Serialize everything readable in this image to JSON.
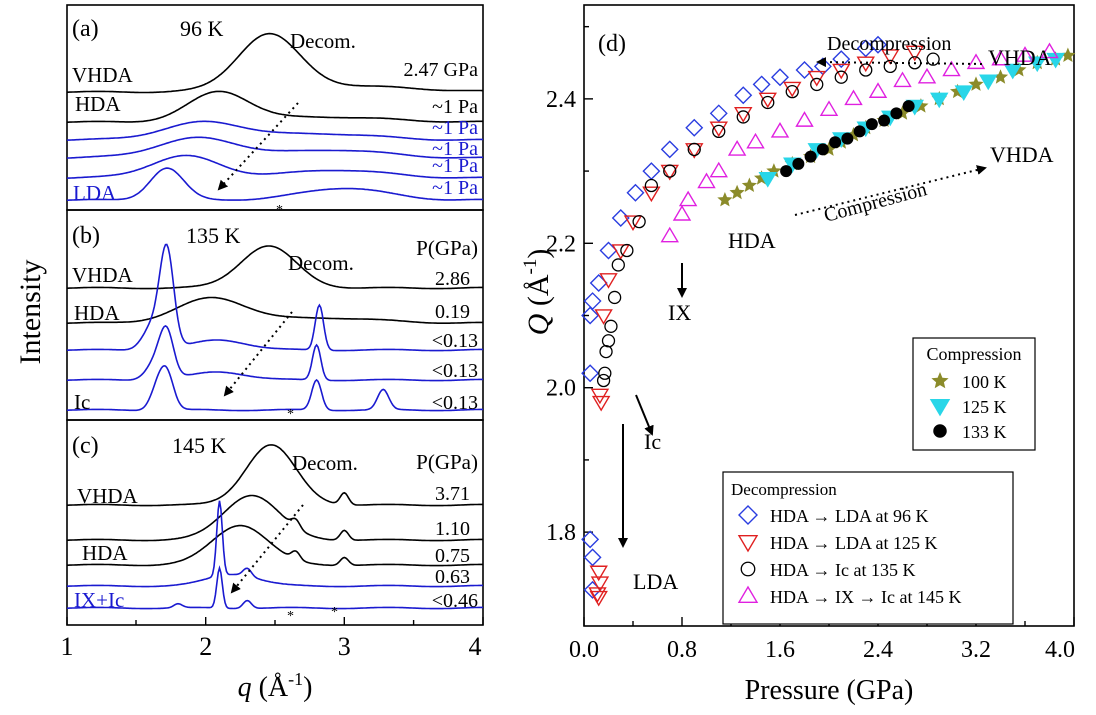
{
  "left": {
    "ylabel": "Intensity",
    "xlabel_main": "q",
    "xlabel_unit_open": " (Å",
    "xlabel_unit_exp": "-1",
    "xlabel_unit_close": ")",
    "xticks": [
      "1",
      "2",
      "3",
      "4"
    ],
    "panels": [
      {
        "label": "(a)",
        "temp": "96 K",
        "decom": "Decom.",
        "header": "",
        "curve_labels": [
          "VHDA",
          "HDA",
          "LDA"
        ],
        "pressures": [
          {
            "text": "2.47 GPa",
            "color": "black"
          },
          {
            "text": "~1 Pa",
            "color": "black"
          },
          {
            "text": "~1 Pa",
            "color": "blue"
          },
          {
            "text": "~1 Pa",
            "color": "blue"
          },
          {
            "text": "~1 Pa",
            "color": "blue"
          },
          {
            "text": "~1 Pa",
            "color": "blue"
          }
        ],
        "star": "*"
      },
      {
        "label": "(b)",
        "temp": "135 K",
        "decom": "Decom.",
        "header": "P(GPa)",
        "curve_labels": [
          "VHDA",
          "HDA",
          "Ic"
        ],
        "pressures": [
          {
            "text": "2.86",
            "color": "black"
          },
          {
            "text": "0.19",
            "color": "black"
          },
          {
            "text": "<0.13",
            "color": "black"
          },
          {
            "text": "<0.13",
            "color": "black"
          },
          {
            "text": "<0.13",
            "color": "black"
          }
        ],
        "star": "*"
      },
      {
        "label": "(c)",
        "temp": "145 K",
        "decom": "Decom.",
        "header": "P(GPa)",
        "curve_labels": [
          "VHDA",
          "HDA",
          "IX+Ic"
        ],
        "pressures": [
          {
            "text": "3.71",
            "color": "black"
          },
          {
            "text": "1.10",
            "color": "black"
          },
          {
            "text": "0.75",
            "color": "black"
          },
          {
            "text": "0.63",
            "color": "black"
          },
          {
            "text": "<0.46",
            "color": "black"
          }
        ],
        "star": "*"
      }
    ]
  },
  "chart_data": {
    "type": "scatter",
    "panel_label": "(d)",
    "xlabel": "Pressure (GPa)",
    "ylabel_main": "Q",
    "ylabel_unit_open": " (Å",
    "ylabel_unit_exp": "-1",
    "ylabel_unit_close": ")",
    "xlim": [
      0,
      4.0
    ],
    "ylim": [
      1.67,
      2.53
    ],
    "xticks": [
      0.0,
      0.8,
      1.6,
      2.4,
      3.2,
      4.0
    ],
    "xtick_labels": [
      "0.0",
      "0.8",
      "1.6",
      "2.4",
      "3.2",
      "4.0"
    ],
    "yticks": [
      1.8,
      2.0,
      2.2,
      2.4
    ],
    "ytick_labels": [
      "1.8",
      "2.0",
      "2.2",
      "2.4"
    ],
    "annotations": {
      "decompression": "Decompression",
      "vhda_top": "VHDA",
      "vhda_mid": "VHDA",
      "compression": "Compression",
      "hda": "HDA",
      "ix": "IX",
      "ic": "Ic",
      "lda": "LDA"
    },
    "legend_compression": {
      "title": "Compression",
      "entries": [
        {
          "label": "100 K",
          "marker": "star",
          "color": "#8b8b2a"
        },
        {
          "label": "125 K",
          "marker": "tri-down-filled",
          "color": "#29d6e8"
        },
        {
          "label": "133 K",
          "marker": "circle-filled",
          "color": "#000000"
        }
      ]
    },
    "legend_decompression": {
      "title": "Decompression",
      "entries": [
        {
          "label": "HDA → LDA at 96 K",
          "marker": "diamond",
          "color": "#2a3de0"
        },
        {
          "label": "HDA → LDA at 125 K",
          "marker": "tri-down",
          "color": "#e02020"
        },
        {
          "label": "HDA → Ic at 135 K",
          "marker": "circle",
          "color": "#000000"
        },
        {
          "label": "HDA → IX → Ic at 145 K",
          "marker": "tri-up",
          "color": "#e020e0"
        }
      ]
    },
    "series": [
      {
        "name": "100 K",
        "marker": "star",
        "color": "#8b8b2a",
        "points": [
          [
            1.15,
            2.26
          ],
          [
            1.25,
            2.27
          ],
          [
            1.35,
            2.28
          ],
          [
            1.45,
            2.29
          ],
          [
            1.55,
            2.3
          ],
          [
            1.7,
            2.31
          ],
          [
            1.85,
            2.32
          ],
          [
            2.0,
            2.33
          ],
          [
            2.1,
            2.34
          ],
          [
            2.2,
            2.35
          ],
          [
            2.3,
            2.36
          ],
          [
            2.45,
            2.37
          ],
          [
            2.6,
            2.38
          ],
          [
            2.75,
            2.39
          ],
          [
            2.9,
            2.4
          ],
          [
            3.05,
            2.41
          ],
          [
            3.2,
            2.42
          ],
          [
            3.4,
            2.43
          ],
          [
            3.55,
            2.44
          ],
          [
            3.7,
            2.45
          ],
          [
            3.85,
            2.455
          ],
          [
            3.95,
            2.46
          ]
        ]
      },
      {
        "name": "125 K",
        "marker": "tri-down-filled",
        "color": "#29d6e8",
        "points": [
          [
            1.5,
            2.29
          ],
          [
            1.7,
            2.31
          ],
          [
            1.9,
            2.33
          ],
          [
            2.1,
            2.345
          ],
          [
            2.3,
            2.36
          ],
          [
            2.5,
            2.375
          ],
          [
            2.7,
            2.39
          ],
          [
            2.9,
            2.4
          ],
          [
            3.1,
            2.41
          ],
          [
            3.3,
            2.425
          ],
          [
            3.5,
            2.44
          ],
          [
            3.7,
            2.45
          ],
          [
            3.85,
            2.455
          ]
        ]
      },
      {
        "name": "133 K",
        "marker": "circle-filled",
        "color": "#000000",
        "points": [
          [
            1.65,
            2.3
          ],
          [
            1.75,
            2.31
          ],
          [
            1.85,
            2.32
          ],
          [
            1.95,
            2.33
          ],
          [
            2.05,
            2.34
          ],
          [
            2.15,
            2.345
          ],
          [
            2.25,
            2.355
          ],
          [
            2.35,
            2.365
          ],
          [
            2.45,
            2.37
          ],
          [
            2.55,
            2.38
          ],
          [
            2.65,
            2.39
          ]
        ]
      },
      {
        "name": "HDA → LDA at 96 K",
        "marker": "diamond",
        "color": "#2a3de0",
        "points": [
          [
            2.4,
            2.475
          ],
          [
            2.3,
            2.47
          ],
          [
            2.1,
            2.455
          ],
          [
            1.95,
            2.445
          ],
          [
            1.8,
            2.44
          ],
          [
            1.6,
            2.43
          ],
          [
            1.45,
            2.42
          ],
          [
            1.3,
            2.405
          ],
          [
            1.1,
            2.38
          ],
          [
            0.9,
            2.36
          ],
          [
            0.7,
            2.33
          ],
          [
            0.55,
            2.3
          ],
          [
            0.42,
            2.27
          ],
          [
            0.3,
            2.235
          ],
          [
            0.2,
            2.19
          ],
          [
            0.12,
            2.145
          ],
          [
            0.07,
            2.12
          ],
          [
            0.05,
            2.1
          ],
          [
            0.05,
            2.02
          ],
          [
            0.05,
            1.79
          ],
          [
            0.07,
            1.765
          ],
          [
            0.07,
            1.72
          ]
        ]
      },
      {
        "name": "HDA → LDA at 125 K",
        "marker": "tri-down",
        "color": "#e02020",
        "points": [
          [
            2.7,
            2.465
          ],
          [
            2.5,
            2.46
          ],
          [
            2.3,
            2.45
          ],
          [
            2.1,
            2.44
          ],
          [
            1.9,
            2.43
          ],
          [
            1.7,
            2.415
          ],
          [
            1.5,
            2.4
          ],
          [
            1.3,
            2.38
          ],
          [
            1.1,
            2.36
          ],
          [
            0.9,
            2.33
          ],
          [
            0.7,
            2.3
          ],
          [
            0.55,
            2.27
          ],
          [
            0.4,
            2.23
          ],
          [
            0.3,
            2.19
          ],
          [
            0.2,
            2.15
          ],
          [
            0.16,
            2.1
          ],
          [
            0.13,
            1.99
          ],
          [
            0.14,
            1.98
          ],
          [
            0.12,
            1.745
          ],
          [
            0.13,
            1.73
          ],
          [
            0.11,
            1.715
          ],
          [
            0.12,
            1.71
          ]
        ]
      },
      {
        "name": "HDA → Ic at 135 K",
        "marker": "circle",
        "color": "#000000",
        "points": [
          [
            2.85,
            2.455
          ],
          [
            2.7,
            2.45
          ],
          [
            2.5,
            2.445
          ],
          [
            2.3,
            2.44
          ],
          [
            2.1,
            2.43
          ],
          [
            1.9,
            2.42
          ],
          [
            1.7,
            2.41
          ],
          [
            1.5,
            2.395
          ],
          [
            1.3,
            2.375
          ],
          [
            1.1,
            2.355
          ],
          [
            0.9,
            2.33
          ],
          [
            0.7,
            2.3
          ],
          [
            0.55,
            2.28
          ],
          [
            0.45,
            2.23
          ],
          [
            0.35,
            2.19
          ],
          [
            0.28,
            2.17
          ],
          [
            0.25,
            2.125
          ],
          [
            0.22,
            2.085
          ],
          [
            0.2,
            2.065
          ],
          [
            0.18,
            2.05
          ],
          [
            0.17,
            2.02
          ],
          [
            0.16,
            2.01
          ]
        ]
      },
      {
        "name": "HDA → IX → Ic at 145 K",
        "marker": "tri-up",
        "color": "#e020e0",
        "points": [
          [
            3.8,
            2.465
          ],
          [
            3.6,
            2.46
          ],
          [
            3.4,
            2.455
          ],
          [
            3.2,
            2.45
          ],
          [
            3.0,
            2.44
          ],
          [
            2.8,
            2.43
          ],
          [
            2.6,
            2.425
          ],
          [
            2.4,
            2.41
          ],
          [
            2.2,
            2.4
          ],
          [
            2.0,
            2.385
          ],
          [
            1.8,
            2.37
          ],
          [
            1.6,
            2.355
          ],
          [
            1.4,
            2.34
          ],
          [
            1.25,
            2.33
          ],
          [
            1.1,
            2.3
          ],
          [
            1.0,
            2.285
          ],
          [
            0.85,
            2.26
          ],
          [
            0.8,
            2.24
          ],
          [
            0.7,
            2.21
          ]
        ]
      }
    ]
  }
}
